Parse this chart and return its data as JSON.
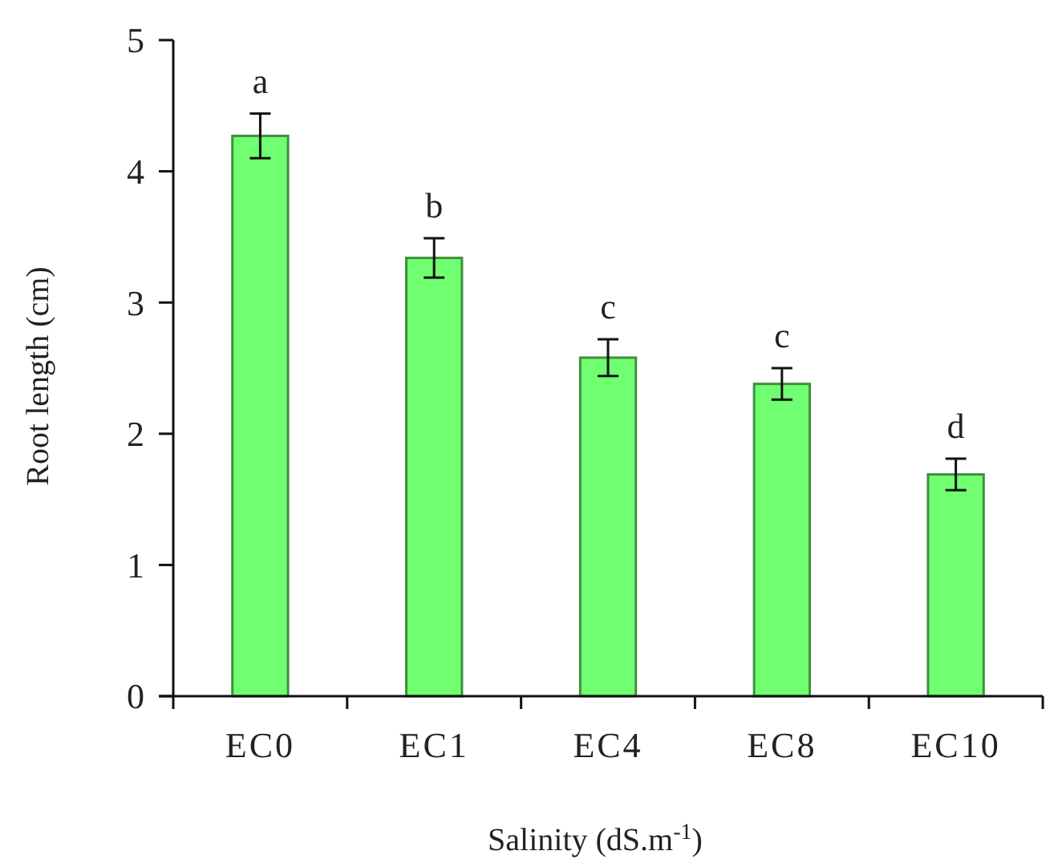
{
  "chart_data": {
    "type": "bar",
    "xlabel": "Salinity (dS.m$^{-1}$)",
    "ylabel": "Root length (cm)",
    "categories": [
      "EC0",
      "EC1",
      "EC4",
      "EC8",
      "EC10"
    ],
    "values": [
      4.27,
      3.34,
      2.58,
      2.38,
      1.69
    ],
    "errors": [
      0.17,
      0.15,
      0.14,
      0.12,
      0.12
    ],
    "color": "#70ff70",
    "ylim": [
      0,
      5
    ],
    "yticks": [
      0,
      1,
      2,
      3,
      4,
      5
    ],
    "annotations": [
      "a",
      "b",
      "c",
      "c",
      "d"
    ]
  }
}
